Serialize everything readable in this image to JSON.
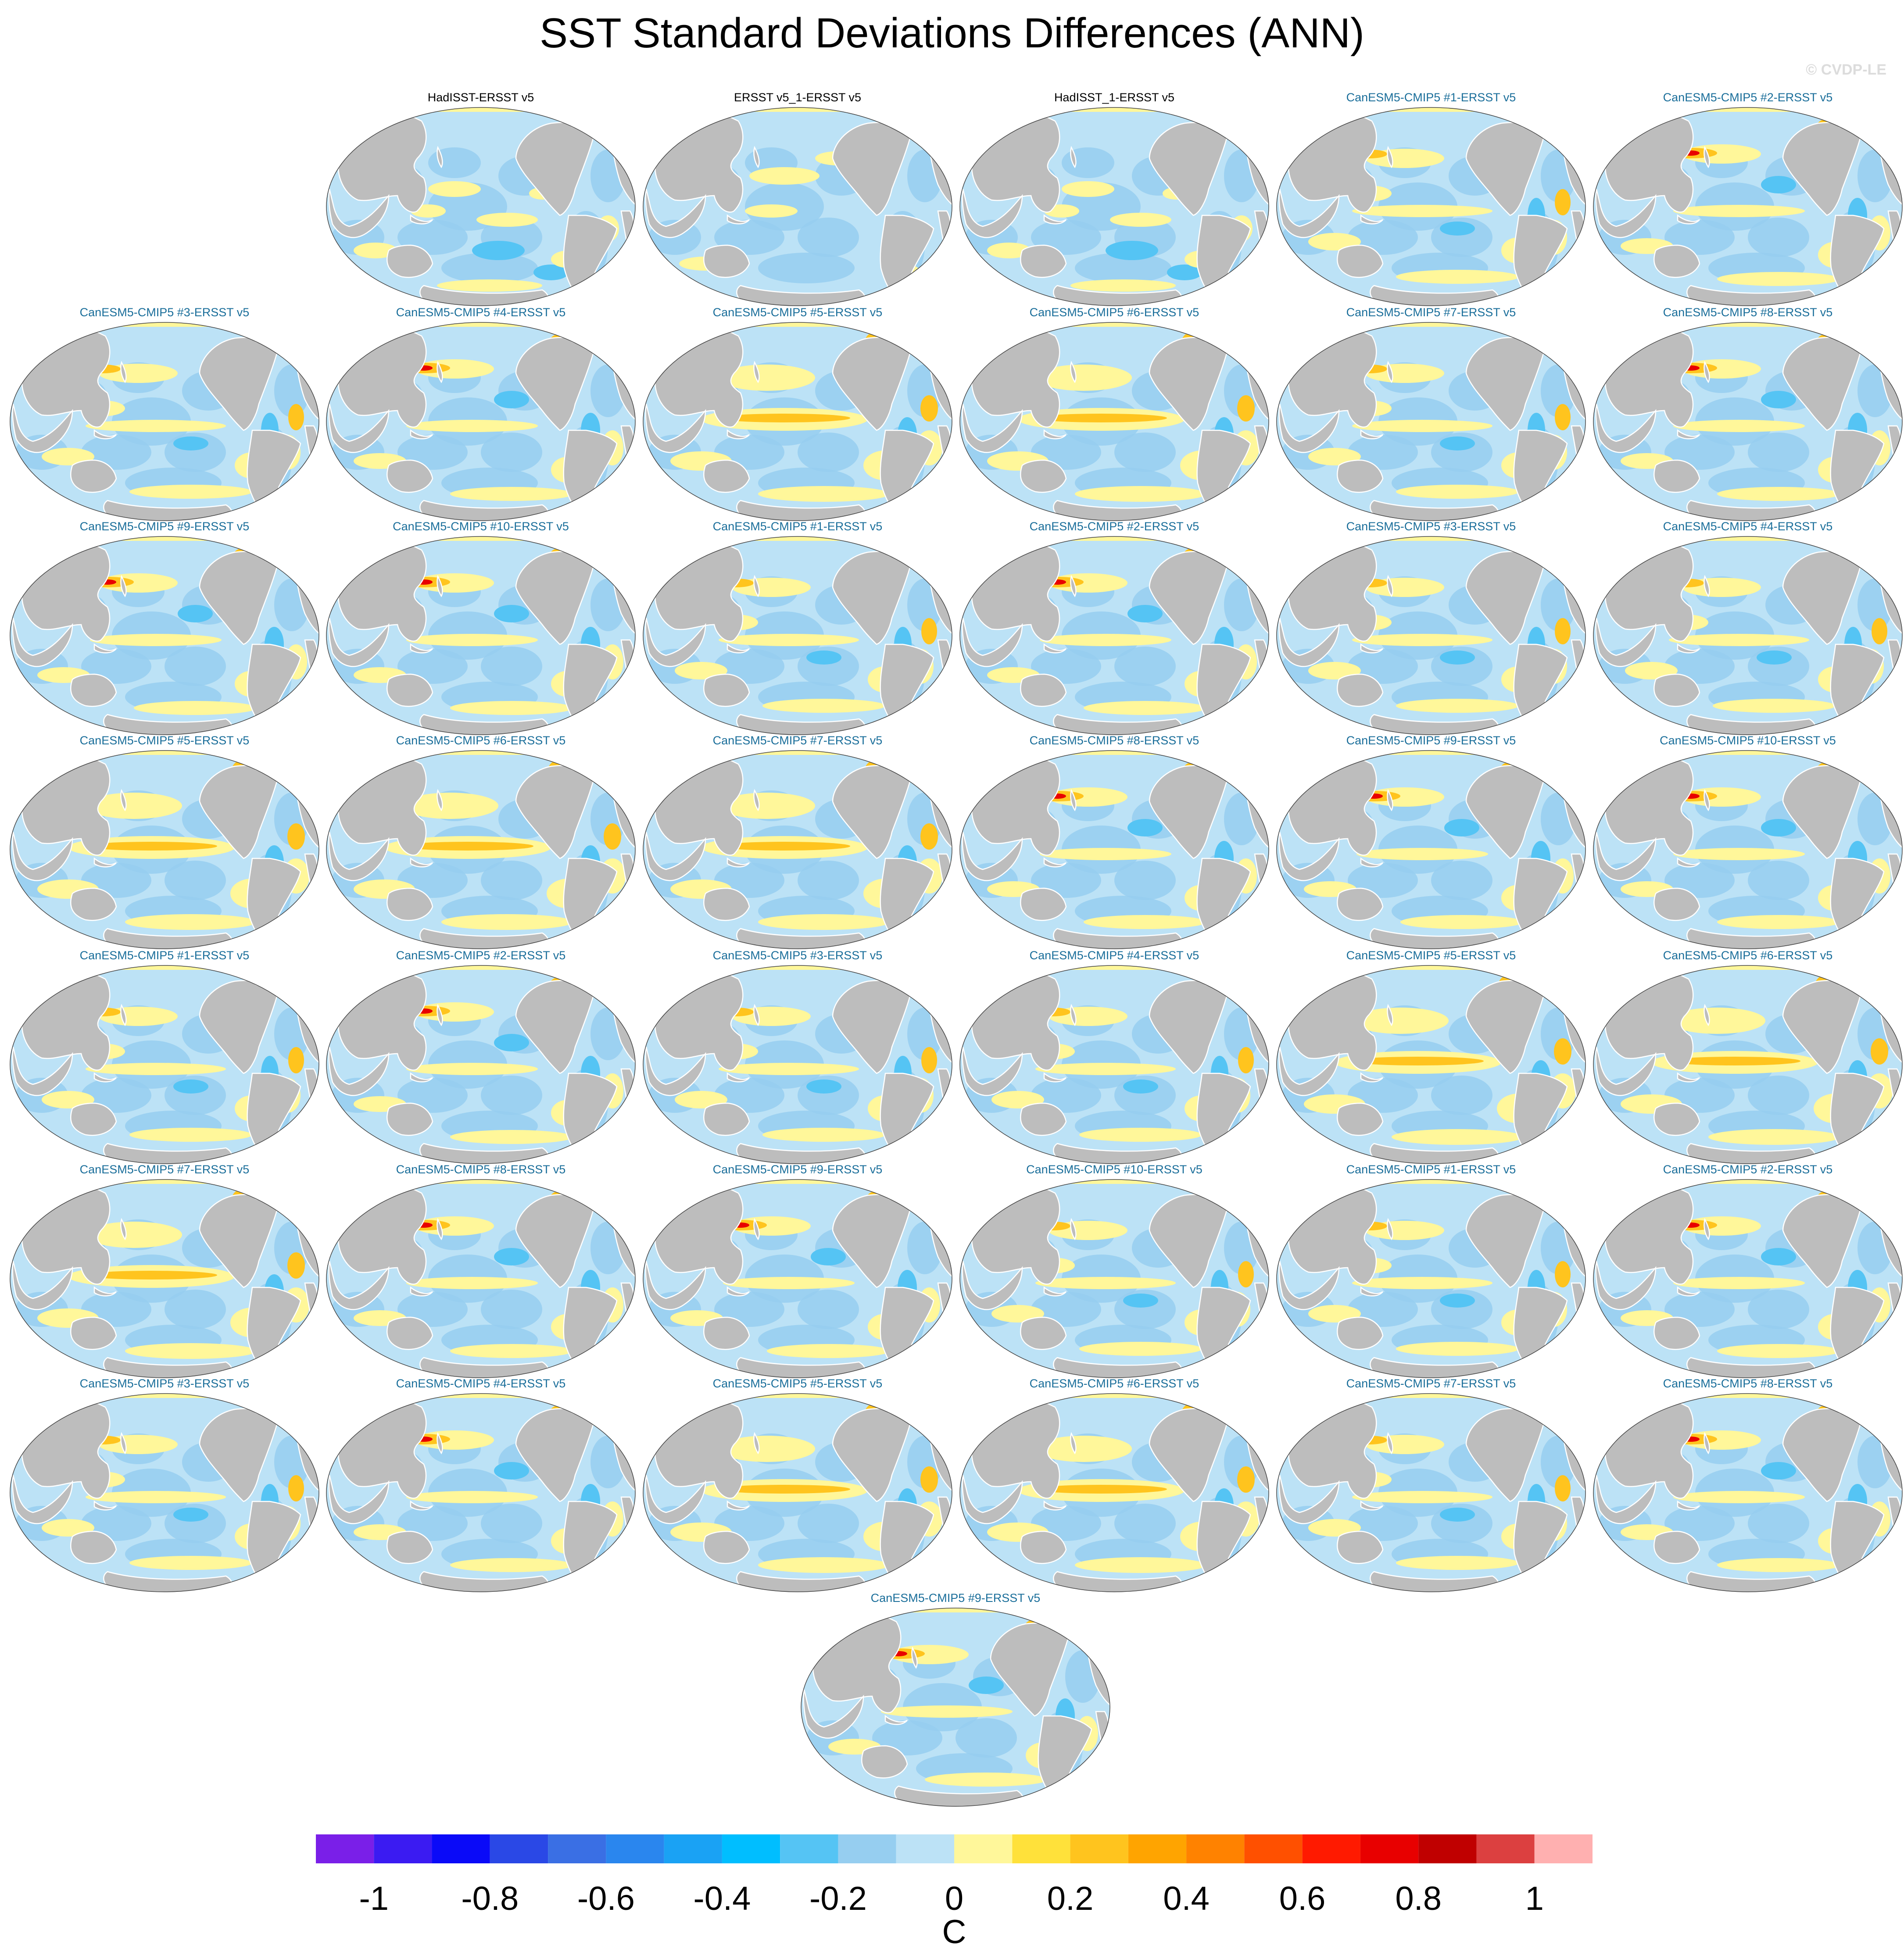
{
  "title": "SST Standard Deviations Differences (ANN)",
  "watermark": "© CVDP-LE",
  "title_colors": {
    "obs": "#000000",
    "model": "#1a6e9a"
  },
  "panels": [
    {
      "label": "HadISST-ERSST v5",
      "kind": "obs",
      "style": 0
    },
    {
      "label": "ERSST v5_1-ERSST v5",
      "kind": "obs",
      "style": 1
    },
    {
      "label": "HadISST_1-ERSST v5",
      "kind": "obs",
      "style": 0
    },
    {
      "label": "CanESM5-CMIP5 #1-ERSST v5",
      "kind": "model",
      "style": 2
    },
    {
      "label": "CanESM5-CMIP5 #2-ERSST v5",
      "kind": "model",
      "style": 3
    },
    {
      "label": "CanESM5-CMIP5 #3-ERSST v5",
      "kind": "model",
      "style": 2
    },
    {
      "label": "CanESM5-CMIP5 #4-ERSST v5",
      "kind": "model",
      "style": 3
    },
    {
      "label": "CanESM5-CMIP5 #5-ERSST v5",
      "kind": "model",
      "style": 4
    },
    {
      "label": "CanESM5-CMIP5 #6-ERSST v5",
      "kind": "model",
      "style": 4
    },
    {
      "label": "CanESM5-CMIP5 #7-ERSST v5",
      "kind": "model",
      "style": 2
    },
    {
      "label": "CanESM5-CMIP5 #8-ERSST v5",
      "kind": "model",
      "style": 3
    },
    {
      "label": "CanESM5-CMIP5 #9-ERSST v5",
      "kind": "model",
      "style": 3
    },
    {
      "label": "CanESM5-CMIP5 #10-ERSST v5",
      "kind": "model",
      "style": 3
    },
    {
      "label": "CanESM5-CMIP5 #1-ERSST v5",
      "kind": "model",
      "style": 2
    },
    {
      "label": "CanESM5-CMIP5 #2-ERSST v5",
      "kind": "model",
      "style": 3
    },
    {
      "label": "CanESM5-CMIP5 #3-ERSST v5",
      "kind": "model",
      "style": 2
    },
    {
      "label": "CanESM5-CMIP5 #4-ERSST v5",
      "kind": "model",
      "style": 2
    },
    {
      "label": "CanESM5-CMIP5 #5-ERSST v5",
      "kind": "model",
      "style": 4
    },
    {
      "label": "CanESM5-CMIP5 #6-ERSST v5",
      "kind": "model",
      "style": 4
    },
    {
      "label": "CanESM5-CMIP5 #7-ERSST v5",
      "kind": "model",
      "style": 4
    },
    {
      "label": "CanESM5-CMIP5 #8-ERSST v5",
      "kind": "model",
      "style": 3
    },
    {
      "label": "CanESM5-CMIP5 #9-ERSST v5",
      "kind": "model",
      "style": 3
    },
    {
      "label": "CanESM5-CMIP5 #10-ERSST v5",
      "kind": "model",
      "style": 3
    },
    {
      "label": "CanESM5-CMIP5 #1-ERSST v5",
      "kind": "model",
      "style": 2
    },
    {
      "label": "CanESM5-CMIP5 #2-ERSST v5",
      "kind": "model",
      "style": 3
    },
    {
      "label": "CanESM5-CMIP5 #3-ERSST v5",
      "kind": "model",
      "style": 2
    },
    {
      "label": "CanESM5-CMIP5 #4-ERSST v5",
      "kind": "model",
      "style": 2
    },
    {
      "label": "CanESM5-CMIP5 #5-ERSST v5",
      "kind": "model",
      "style": 4
    },
    {
      "label": "CanESM5-CMIP5 #6-ERSST v5",
      "kind": "model",
      "style": 4
    },
    {
      "label": "CanESM5-CMIP5 #7-ERSST v5",
      "kind": "model",
      "style": 4
    },
    {
      "label": "CanESM5-CMIP5 #8-ERSST v5",
      "kind": "model",
      "style": 3
    },
    {
      "label": "CanESM5-CMIP5 #9-ERSST v5",
      "kind": "model",
      "style": 3
    },
    {
      "label": "CanESM5-CMIP5 #10-ERSST v5",
      "kind": "model",
      "style": 2
    },
    {
      "label": "CanESM5-CMIP5 #1-ERSST v5",
      "kind": "model",
      "style": 2
    },
    {
      "label": "CanESM5-CMIP5 #2-ERSST v5",
      "kind": "model",
      "style": 3
    },
    {
      "label": "CanESM5-CMIP5 #3-ERSST v5",
      "kind": "model",
      "style": 2
    },
    {
      "label": "CanESM5-CMIP5 #4-ERSST v5",
      "kind": "model",
      "style": 3
    },
    {
      "label": "CanESM5-CMIP5 #5-ERSST v5",
      "kind": "model",
      "style": 4
    },
    {
      "label": "CanESM5-CMIP5 #6-ERSST v5",
      "kind": "model",
      "style": 4
    },
    {
      "label": "CanESM5-CMIP5 #7-ERSST v5",
      "kind": "model",
      "style": 2
    },
    {
      "label": "CanESM5-CMIP5 #8-ERSST v5",
      "kind": "model",
      "style": 3
    },
    {
      "label": "CanESM5-CMIP5 #9-ERSST v5",
      "kind": "model",
      "style": 3
    }
  ],
  "colorbar": {
    "unit": "C",
    "colors": [
      "#7a1fe8",
      "#3b1bf2",
      "#0a0af8",
      "#2a48e6",
      "#3a6fe4",
      "#2a86ee",
      "#1aa2f4",
      "#00beff",
      "#55c4f4",
      "#96cef0",
      "#bce2f6",
      "#fff79a",
      "#ffe13a",
      "#ffc41e",
      "#ffa400",
      "#ff8200",
      "#ff5000",
      "#ff1a00",
      "#e80000",
      "#c00000",
      "#dc4040",
      "#ffb0b0"
    ],
    "tick_values": [
      -1,
      -0.8,
      -0.6,
      -0.4,
      -0.2,
      0,
      0.2,
      0.4,
      0.6,
      0.8,
      1
    ],
    "tick_labels": [
      "-1",
      "-0.8",
      "-0.6",
      "-0.4",
      "-0.2",
      "0",
      "0.2",
      "0.4",
      "0.6",
      "0.8",
      "1"
    ]
  }
}
